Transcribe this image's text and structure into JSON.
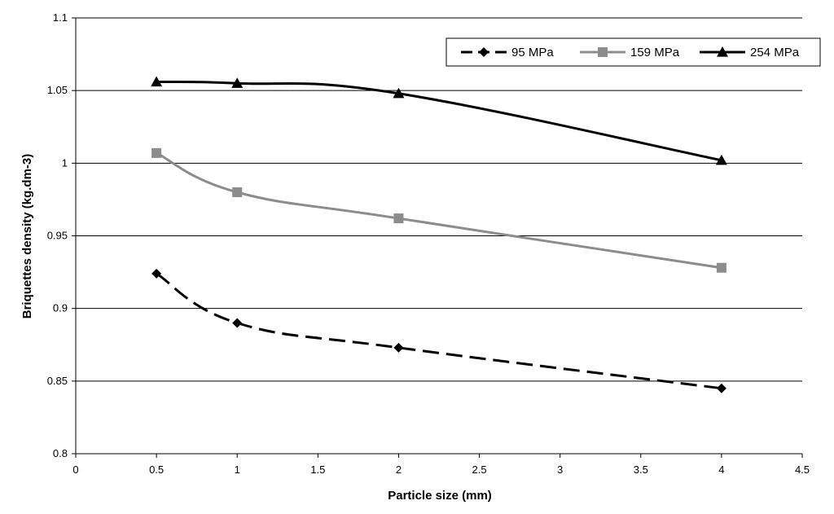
{
  "chart_data": {
    "type": "line",
    "title": "",
    "xlabel": "Particle size (mm)",
    "ylabel": "Briquettes density (kg.dm-3)",
    "xlim": [
      0,
      4.5
    ],
    "ylim": [
      0.8,
      1.1
    ],
    "x_ticks": [
      0,
      0.5,
      1,
      1.5,
      2,
      2.5,
      3,
      3.5,
      4,
      4.5
    ],
    "x_tick_labels": [
      "0",
      "0.5",
      "1",
      "1.5",
      "2",
      "2.5",
      "3",
      "3.5",
      "4",
      "4.5"
    ],
    "y_ticks": [
      0.8,
      0.85,
      0.9,
      0.95,
      1,
      1.05,
      1.1
    ],
    "y_tick_labels": [
      "0.8",
      "0.85",
      "0.9",
      "0.95",
      "1",
      "1.05",
      "1.1"
    ],
    "grid": "horizontal",
    "legend_position": "top-right",
    "x": [
      0.5,
      1,
      2,
      4
    ],
    "series": [
      {
        "name": "95 MPa",
        "values": [
          0.924,
          0.89,
          0.873,
          0.845
        ],
        "color": "#000000",
        "marker": "diamond",
        "dash": "dashed"
      },
      {
        "name": "159 MPa",
        "values": [
          1.007,
          0.98,
          0.962,
          0.928
        ],
        "color": "#8c8c8c",
        "marker": "square",
        "dash": "solid"
      },
      {
        "name": "254 MPa",
        "values": [
          1.056,
          1.055,
          1.048,
          1.002
        ],
        "color": "#000000",
        "marker": "triangle",
        "dash": "solid"
      }
    ]
  }
}
